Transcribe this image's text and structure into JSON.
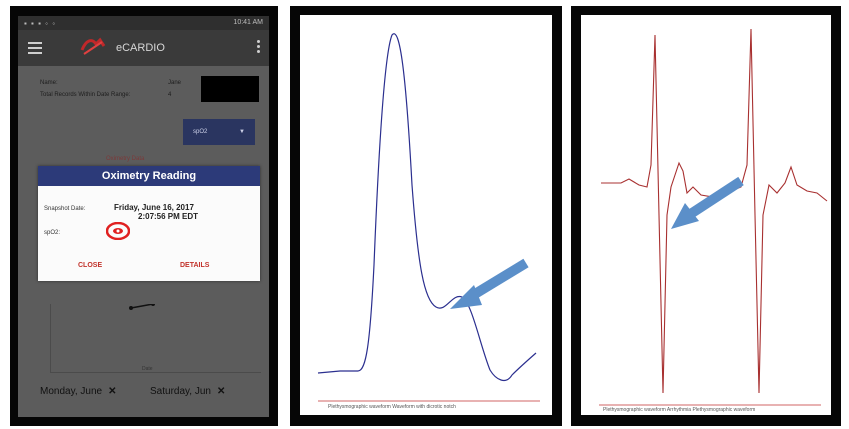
{
  "phone": {
    "app_title": "eCARDIO",
    "status_right": "10:41 AM",
    "info_name_label": "Name:",
    "info_name_value": "Jane",
    "info_records_label": "Total Records Within Date Range:",
    "info_records_value": "4",
    "spo2_dropdown": "spO2",
    "faint_title": "Oximetry Data",
    "dialog": {
      "title": "Oximetry Reading",
      "snapshot_label": "Snapshot Date:",
      "snapshot_value_line1": "Friday, June 16, 2017",
      "snapshot_value_line2": "2:07:56 PM EDT",
      "spo2_label": "spO2:",
      "close_label": "CLOSE",
      "details_label": "DETAILS"
    },
    "chart_x_label": "Date",
    "chips": [
      {
        "label": "Monday, June"
      },
      {
        "label": "Saturday, Jun"
      }
    ],
    "colors": {
      "dialog_header": "#2c3a79",
      "action": "#c2332b",
      "eye_marker": "#e02020"
    }
  },
  "waveform1": {
    "legend": "Plethysmographic waveform    Waveform with dicrotic notch",
    "colors": {
      "trace": "#2b2f8f",
      "arrow": "#5b8fc9"
    }
  },
  "waveform2": {
    "legend": "Plethysmographic waveform    Arrhythmia Plethysmographic waveform",
    "colors": {
      "trace": "#a83030",
      "arrow": "#5b8fc9"
    }
  }
}
